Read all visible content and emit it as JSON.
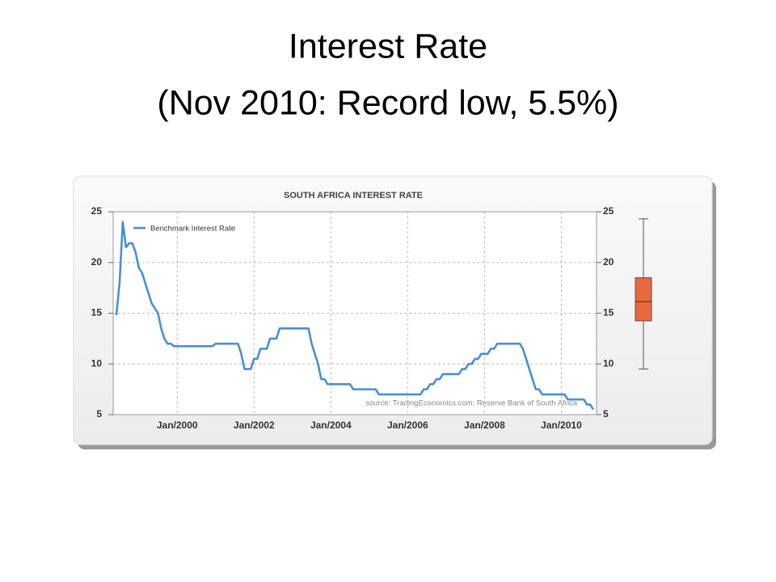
{
  "slide": {
    "title": [
      "Interest Rate",
      "(Nov 2010: Record low, 5.5%)"
    ]
  },
  "chart_data": [
    {
      "type": "line",
      "title": "SOUTH AFRICA INTEREST RATE",
      "source": "source: TradingEconomics.com; Reserve Bank of South Africa",
      "x": [
        "1998-06",
        "1998-07",
        "1998-08",
        "1998-09",
        "1998-10",
        "1998-11",
        "1998-12",
        "1999-01",
        "1999-02",
        "1999-03",
        "1999-04",
        "1999-05",
        "1999-06",
        "1999-07",
        "1999-08",
        "1999-09",
        "1999-10",
        "1999-11",
        "1999-12",
        "2000-01",
        "2000-02",
        "2000-03",
        "2000-04",
        "2000-05",
        "2000-06",
        "2000-07",
        "2000-08",
        "2000-09",
        "2000-10",
        "2000-11",
        "2000-12",
        "2001-01",
        "2001-02",
        "2001-03",
        "2001-04",
        "2001-05",
        "2001-06",
        "2001-07",
        "2001-08",
        "2001-09",
        "2001-10",
        "2001-11",
        "2001-12",
        "2002-01",
        "2002-02",
        "2002-03",
        "2002-04",
        "2002-05",
        "2002-06",
        "2002-07",
        "2002-08",
        "2002-09",
        "2002-10",
        "2002-11",
        "2002-12",
        "2003-01",
        "2003-02",
        "2003-03",
        "2003-04",
        "2003-05",
        "2003-06",
        "2003-07",
        "2003-08",
        "2003-09",
        "2003-10",
        "2003-11",
        "2003-12",
        "2004-01",
        "2004-02",
        "2004-03",
        "2004-04",
        "2004-05",
        "2004-06",
        "2004-07",
        "2004-08",
        "2004-09",
        "2004-10",
        "2004-11",
        "2004-12",
        "2005-01",
        "2005-02",
        "2005-03",
        "2005-04",
        "2005-05",
        "2005-06",
        "2005-07",
        "2005-08",
        "2005-09",
        "2005-10",
        "2005-11",
        "2005-12",
        "2006-01",
        "2006-02",
        "2006-03",
        "2006-04",
        "2006-05",
        "2006-06",
        "2006-07",
        "2006-08",
        "2006-09",
        "2006-10",
        "2006-11",
        "2006-12",
        "2007-01",
        "2007-02",
        "2007-03",
        "2007-04",
        "2007-05",
        "2007-06",
        "2007-07",
        "2007-08",
        "2007-09",
        "2007-10",
        "2007-11",
        "2007-12",
        "2008-01",
        "2008-02",
        "2008-03",
        "2008-04",
        "2008-05",
        "2008-06",
        "2008-07",
        "2008-08",
        "2008-09",
        "2008-10",
        "2008-11",
        "2008-12",
        "2009-01",
        "2009-02",
        "2009-03",
        "2009-04",
        "2009-05",
        "2009-06",
        "2009-07",
        "2009-08",
        "2009-09",
        "2009-10",
        "2009-11",
        "2009-12",
        "2010-01",
        "2010-02",
        "2010-03",
        "2010-04",
        "2010-05",
        "2010-06",
        "2010-07",
        "2010-08",
        "2010-09",
        "2010-10",
        "2010-11"
      ],
      "series": [
        {
          "name": "Benchmark Interest Rate",
          "color": "#4a8fd6",
          "values": [
            14.8,
            18,
            24,
            21.5,
            21.9,
            21.9,
            21,
            19.5,
            19,
            18,
            17,
            16,
            15.5,
            15,
            13.5,
            12.5,
            12,
            12,
            11.75,
            11.75,
            11.75,
            11.75,
            11.75,
            11.75,
            11.75,
            11.75,
            11.75,
            11.75,
            11.75,
            11.75,
            11.75,
            12,
            12,
            12,
            12,
            12,
            12,
            12,
            12,
            11,
            9.5,
            9.5,
            9.5,
            10.5,
            10.5,
            11.5,
            11.5,
            11.5,
            12.5,
            12.5,
            12.5,
            13.5,
            13.5,
            13.5,
            13.5,
            13.5,
            13.5,
            13.5,
            13.5,
            13.5,
            13.5,
            12,
            11,
            10,
            8.5,
            8.5,
            8,
            8,
            8,
            8,
            8,
            8,
            8,
            8,
            7.5,
            7.5,
            7.5,
            7.5,
            7.5,
            7.5,
            7.5,
            7.5,
            7,
            7,
            7,
            7,
            7,
            7,
            7,
            7,
            7,
            7,
            7,
            7,
            7,
            7,
            7.5,
            7.5,
            8,
            8,
            8.5,
            8.5,
            9,
            9,
            9,
            9,
            9,
            9,
            9.5,
            9.5,
            10,
            10,
            10.5,
            10.5,
            11,
            11,
            11,
            11.5,
            11.5,
            12,
            12,
            12,
            12,
            12,
            12,
            12,
            12,
            11.5,
            10.5,
            9.5,
            8.5,
            7.5,
            7.5,
            7,
            7,
            7,
            7,
            7,
            7,
            7,
            7,
            6.5,
            6.5,
            6.5,
            6.5,
            6.5,
            6.5,
            6,
            6,
            5.5
          ]
        }
      ],
      "xlim": [
        "1998-05",
        "2010-12"
      ],
      "xticks": [
        {
          "value": "2000-01",
          "label": "Jan/2000"
        },
        {
          "value": "2002-01",
          "label": "Jan/2002"
        },
        {
          "value": "2004-01",
          "label": "Jan/2004"
        },
        {
          "value": "2006-01",
          "label": "Jan/2006"
        },
        {
          "value": "2008-01",
          "label": "Jan/2008"
        },
        {
          "value": "2010-01",
          "label": "Jan/2010"
        }
      ],
      "ylim": [
        5,
        25
      ],
      "yticks": [
        5,
        10,
        15,
        20,
        25
      ],
      "y2lim": [
        5,
        25
      ],
      "y2ticks": [
        5,
        10,
        15,
        20,
        25
      ],
      "grid": true,
      "legend": "top-left"
    },
    {
      "type": "box",
      "min": 9.5,
      "q1": 14.25,
      "median": 16.15,
      "q3": 18.5,
      "max": 24.3,
      "color": "#e8693c",
      "ylim": [
        5,
        25
      ]
    }
  ]
}
